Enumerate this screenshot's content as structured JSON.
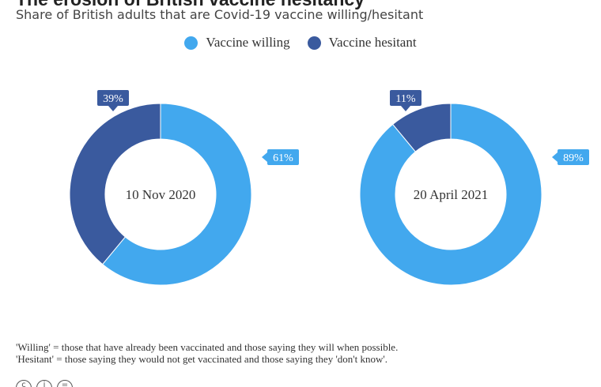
{
  "header": {
    "title": "The erosion of British vaccine hesitancy",
    "subtitle": "Share of British adults that are Covid-19 vaccine willing/hesitant"
  },
  "colors": {
    "willing": "#42A8EE",
    "hesitant": "#3A5A9E"
  },
  "icons": [
    "cc-icon",
    "info-icon",
    "equals-icon"
  ],
  "chart_data": {
    "type": "pie",
    "legend_position": "top",
    "series_names": [
      "Vaccine willing",
      "Vaccine hesitant"
    ],
    "charts": [
      {
        "label": "10 Nov 2020",
        "slices": [
          {
            "name": "Vaccine willing",
            "value": 61,
            "label": "61%"
          },
          {
            "name": "Vaccine hesitant",
            "value": 39,
            "label": "39%"
          }
        ]
      },
      {
        "label": "20 April 2021",
        "slices": [
          {
            "name": "Vaccine willing",
            "value": 89,
            "label": "89%"
          },
          {
            "name": "Vaccine hesitant",
            "value": 11,
            "label": "11%"
          }
        ]
      }
    ]
  },
  "footnote": {
    "line1": "'Willing' = those that have already been vaccinated and those saying they will when possible.",
    "line2": "'Hesitant' = those saying they would not get vaccinated and those saying they 'don't know'."
  }
}
